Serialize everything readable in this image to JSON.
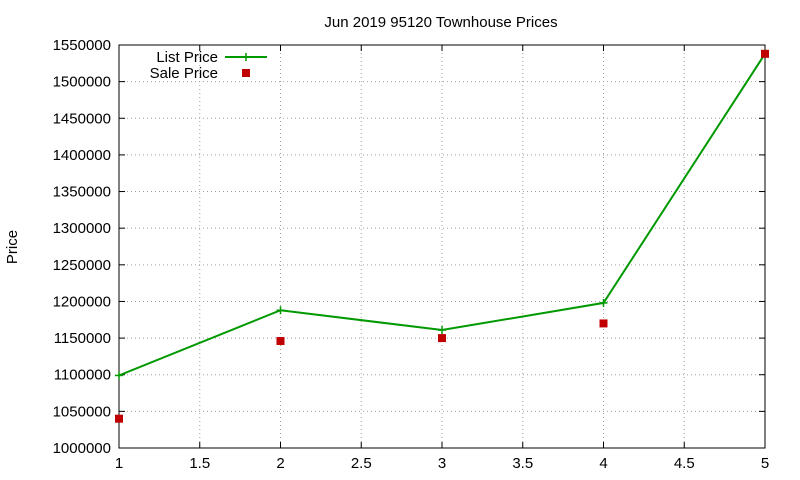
{
  "chart_data": {
    "type": "line",
    "title": "Jun 2019 95120 Townhouse Prices",
    "xlabel": "",
    "ylabel": "Price",
    "xlim": [
      1,
      5
    ],
    "ylim": [
      1000000,
      1550000
    ],
    "x_ticks": [
      "1",
      "1.5",
      "2",
      "2.5",
      "3",
      "3.5",
      "4",
      "4.5",
      "5"
    ],
    "y_ticks": [
      "1000000",
      "1050000",
      "1100000",
      "1150000",
      "1200000",
      "1250000",
      "1300000",
      "1350000",
      "1400000",
      "1450000",
      "1500000",
      "1550000"
    ],
    "grid": true,
    "legend_position": "top-left",
    "series": [
      {
        "name": "List Price",
        "style": "line-plus",
        "color": "#009900",
        "x": [
          1,
          2,
          3,
          4,
          5
        ],
        "y": [
          1099000,
          1188000,
          1161000,
          1198000,
          1538000
        ]
      },
      {
        "name": "Sale Price",
        "style": "square-points",
        "color": "#c00000",
        "x": [
          1,
          2,
          3,
          4,
          5
        ],
        "y": [
          1040000,
          1146000,
          1150000,
          1170000,
          1538000
        ]
      }
    ]
  }
}
